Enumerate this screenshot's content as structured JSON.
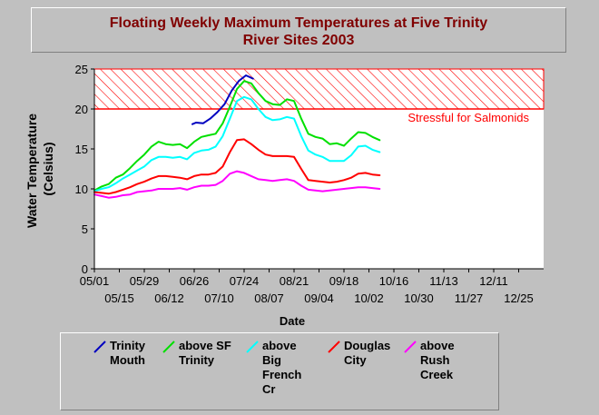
{
  "chart_data": {
    "type": "line",
    "title": "Floating Weekly Maximum Temperatures at Five Trinity River Sites 2003",
    "xlabel": "Date",
    "ylabel": "Water Temperature (Celsius)",
    "x_axis_range": [
      "05/01",
      "01/08"
    ],
    "ylim": [
      0,
      25
    ],
    "y_ticks": [
      "0",
      "5",
      "10",
      "15",
      "20",
      "25"
    ],
    "x_ticks_upper": [
      "05/01",
      "05/29",
      "06/26",
      "07/24",
      "08/21",
      "09/18",
      "10/16",
      "11/13",
      "12/11"
    ],
    "x_ticks_lower": [
      "05/15",
      "06/12",
      "07/10",
      "08/07",
      "09/04",
      "10/02",
      "10/30",
      "11/27",
      "12/25"
    ],
    "grid": false,
    "legend_position": "bottom",
    "threshold": {
      "label": "Stressful for Salmonids",
      "from": 20,
      "to": 25,
      "color": "#ff0000"
    },
    "series": [
      {
        "name": "Trinity Mouth",
        "color": "#0000c0",
        "points": [
          [
            "06/25",
            18.1
          ],
          [
            "06/27",
            18.3
          ],
          [
            "07/01",
            18.2
          ],
          [
            "07/05",
            18.8
          ],
          [
            "07/09",
            19.6
          ],
          [
            "07/13",
            20.6
          ],
          [
            "07/17",
            22.3
          ],
          [
            "07/21",
            23.5
          ],
          [
            "07/25",
            24.2
          ],
          [
            "07/29",
            23.8
          ]
        ]
      },
      {
        "name": "above SF Trinity",
        "color": "#00e000",
        "points": [
          [
            "05/01",
            9.8
          ],
          [
            "05/05",
            10.3
          ],
          [
            "05/09",
            10.6
          ],
          [
            "05/13",
            11.4
          ],
          [
            "05/17",
            11.8
          ],
          [
            "05/21",
            12.6
          ],
          [
            "05/25",
            13.5
          ],
          [
            "05/29",
            14.3
          ],
          [
            "06/02",
            15.3
          ],
          [
            "06/06",
            15.9
          ],
          [
            "06/10",
            15.6
          ],
          [
            "06/14",
            15.5
          ],
          [
            "06/18",
            15.6
          ],
          [
            "06/22",
            15.1
          ],
          [
            "06/26",
            15.9
          ],
          [
            "06/30",
            16.5
          ],
          [
            "07/04",
            16.7
          ],
          [
            "07/08",
            16.9
          ],
          [
            "07/12",
            18.2
          ],
          [
            "07/16",
            20.3
          ],
          [
            "07/20",
            22.5
          ],
          [
            "07/24",
            23.5
          ],
          [
            "07/28",
            23.2
          ],
          [
            "08/01",
            22.0
          ],
          [
            "08/05",
            21.0
          ],
          [
            "08/09",
            20.6
          ],
          [
            "08/13",
            20.5
          ],
          [
            "08/17",
            21.2
          ],
          [
            "08/21",
            21.0
          ],
          [
            "08/25",
            18.8
          ],
          [
            "08/29",
            16.9
          ],
          [
            "09/02",
            16.5
          ],
          [
            "09/06",
            16.3
          ],
          [
            "09/10",
            15.6
          ],
          [
            "09/14",
            15.7
          ],
          [
            "09/18",
            15.4
          ],
          [
            "09/22",
            16.3
          ],
          [
            "09/26",
            17.1
          ],
          [
            "09/30",
            17.0
          ],
          [
            "10/04",
            16.5
          ],
          [
            "10/08",
            16.1
          ]
        ]
      },
      {
        "name": "above Big French Cr",
        "color": "#00ffff",
        "points": [
          [
            "05/01",
            9.7
          ],
          [
            "05/05",
            10.0
          ],
          [
            "05/09",
            10.2
          ],
          [
            "05/13",
            10.7
          ],
          [
            "05/17",
            11.3
          ],
          [
            "05/21",
            11.8
          ],
          [
            "05/25",
            12.3
          ],
          [
            "05/29",
            12.8
          ],
          [
            "06/02",
            13.6
          ],
          [
            "06/06",
            14.0
          ],
          [
            "06/10",
            14.0
          ],
          [
            "06/14",
            13.9
          ],
          [
            "06/18",
            14.0
          ],
          [
            "06/22",
            13.7
          ],
          [
            "06/26",
            14.5
          ],
          [
            "06/30",
            14.8
          ],
          [
            "07/04",
            14.9
          ],
          [
            "07/08",
            15.3
          ],
          [
            "07/12",
            16.6
          ],
          [
            "07/16",
            18.8
          ],
          [
            "07/20",
            21.0
          ],
          [
            "07/24",
            21.5
          ],
          [
            "07/28",
            21.2
          ],
          [
            "08/01",
            20.0
          ],
          [
            "08/05",
            19.0
          ],
          [
            "08/09",
            18.6
          ],
          [
            "08/13",
            18.7
          ],
          [
            "08/17",
            19.0
          ],
          [
            "08/21",
            18.8
          ],
          [
            "08/25",
            16.6
          ],
          [
            "08/29",
            14.8
          ],
          [
            "09/02",
            14.3
          ],
          [
            "09/06",
            14.0
          ],
          [
            "09/10",
            13.5
          ],
          [
            "09/14",
            13.5
          ],
          [
            "09/18",
            13.5
          ],
          [
            "09/22",
            14.2
          ],
          [
            "09/26",
            15.3
          ],
          [
            "09/30",
            15.4
          ],
          [
            "10/04",
            14.9
          ],
          [
            "10/08",
            14.6
          ]
        ]
      },
      {
        "name": "Douglas City",
        "color": "#ff0000",
        "points": [
          [
            "05/01",
            9.6
          ],
          [
            "05/05",
            9.5
          ],
          [
            "05/09",
            9.4
          ],
          [
            "05/13",
            9.6
          ],
          [
            "05/17",
            9.9
          ],
          [
            "05/21",
            10.2
          ],
          [
            "05/25",
            10.6
          ],
          [
            "05/29",
            10.9
          ],
          [
            "06/02",
            11.3
          ],
          [
            "06/06",
            11.6
          ],
          [
            "06/10",
            11.6
          ],
          [
            "06/14",
            11.5
          ],
          [
            "06/18",
            11.4
          ],
          [
            "06/22",
            11.2
          ],
          [
            "06/26",
            11.6
          ],
          [
            "06/30",
            11.8
          ],
          [
            "07/04",
            11.8
          ],
          [
            "07/08",
            12.0
          ],
          [
            "07/12",
            12.8
          ],
          [
            "07/16",
            14.6
          ],
          [
            "07/20",
            16.1
          ],
          [
            "07/24",
            16.2
          ],
          [
            "07/28",
            15.6
          ],
          [
            "08/01",
            14.9
          ],
          [
            "08/05",
            14.3
          ],
          [
            "08/09",
            14.1
          ],
          [
            "08/13",
            14.1
          ],
          [
            "08/17",
            14.1
          ],
          [
            "08/21",
            14.0
          ],
          [
            "08/25",
            12.5
          ],
          [
            "08/29",
            11.1
          ],
          [
            "09/02",
            11.0
          ],
          [
            "09/06",
            10.9
          ],
          [
            "09/10",
            10.8
          ],
          [
            "09/14",
            10.9
          ],
          [
            "09/18",
            11.1
          ],
          [
            "09/22",
            11.4
          ],
          [
            "09/26",
            11.9
          ],
          [
            "09/30",
            12.0
          ],
          [
            "10/04",
            11.8
          ],
          [
            "10/08",
            11.7
          ]
        ]
      },
      {
        "name": "above Rush Creek",
        "color": "#ff00ff",
        "points": [
          [
            "05/01",
            9.3
          ],
          [
            "05/05",
            9.1
          ],
          [
            "05/09",
            8.9
          ],
          [
            "05/13",
            9.0
          ],
          [
            "05/17",
            9.2
          ],
          [
            "05/21",
            9.3
          ],
          [
            "05/25",
            9.6
          ],
          [
            "05/29",
            9.7
          ],
          [
            "06/02",
            9.8
          ],
          [
            "06/06",
            10.0
          ],
          [
            "06/10",
            10.0
          ],
          [
            "06/14",
            10.0
          ],
          [
            "06/18",
            10.1
          ],
          [
            "06/22",
            9.9
          ],
          [
            "06/26",
            10.2
          ],
          [
            "06/30",
            10.4
          ],
          [
            "07/04",
            10.4
          ],
          [
            "07/08",
            10.5
          ],
          [
            "07/12",
            11.0
          ],
          [
            "07/16",
            11.9
          ],
          [
            "07/20",
            12.2
          ],
          [
            "07/24",
            12.0
          ],
          [
            "07/28",
            11.6
          ],
          [
            "08/01",
            11.2
          ],
          [
            "08/05",
            11.1
          ],
          [
            "08/09",
            11.0
          ],
          [
            "08/13",
            11.1
          ],
          [
            "08/17",
            11.2
          ],
          [
            "08/21",
            11.0
          ],
          [
            "08/25",
            10.4
          ],
          [
            "08/29",
            9.9
          ],
          [
            "09/02",
            9.8
          ],
          [
            "09/06",
            9.7
          ],
          [
            "09/10",
            9.8
          ],
          [
            "09/14",
            9.9
          ],
          [
            "09/18",
            10.0
          ],
          [
            "09/22",
            10.1
          ],
          [
            "09/26",
            10.2
          ],
          [
            "09/30",
            10.2
          ],
          [
            "10/04",
            10.1
          ],
          [
            "10/08",
            10.0
          ]
        ]
      }
    ]
  },
  "legend": [
    {
      "lines": [
        "Trinity",
        "Mouth"
      ],
      "color": "#0000c0"
    },
    {
      "lines": [
        "above SF",
        "Trinity"
      ],
      "color": "#00e000"
    },
    {
      "lines": [
        "above",
        "Big",
        "French",
        "Cr"
      ],
      "color": "#00ffff"
    },
    {
      "lines": [
        "Douglas",
        "City"
      ],
      "color": "#ff0000"
    },
    {
      "lines": [
        "above",
        "Rush",
        "Creek"
      ],
      "color": "#ff00ff"
    }
  ],
  "title_lines": [
    "Floating Weekly Maximum Temperatures at Five Trinity",
    "River Sites 2003"
  ],
  "ylabel_lines": [
    "Water Temperature",
    "(Celsius)"
  ]
}
